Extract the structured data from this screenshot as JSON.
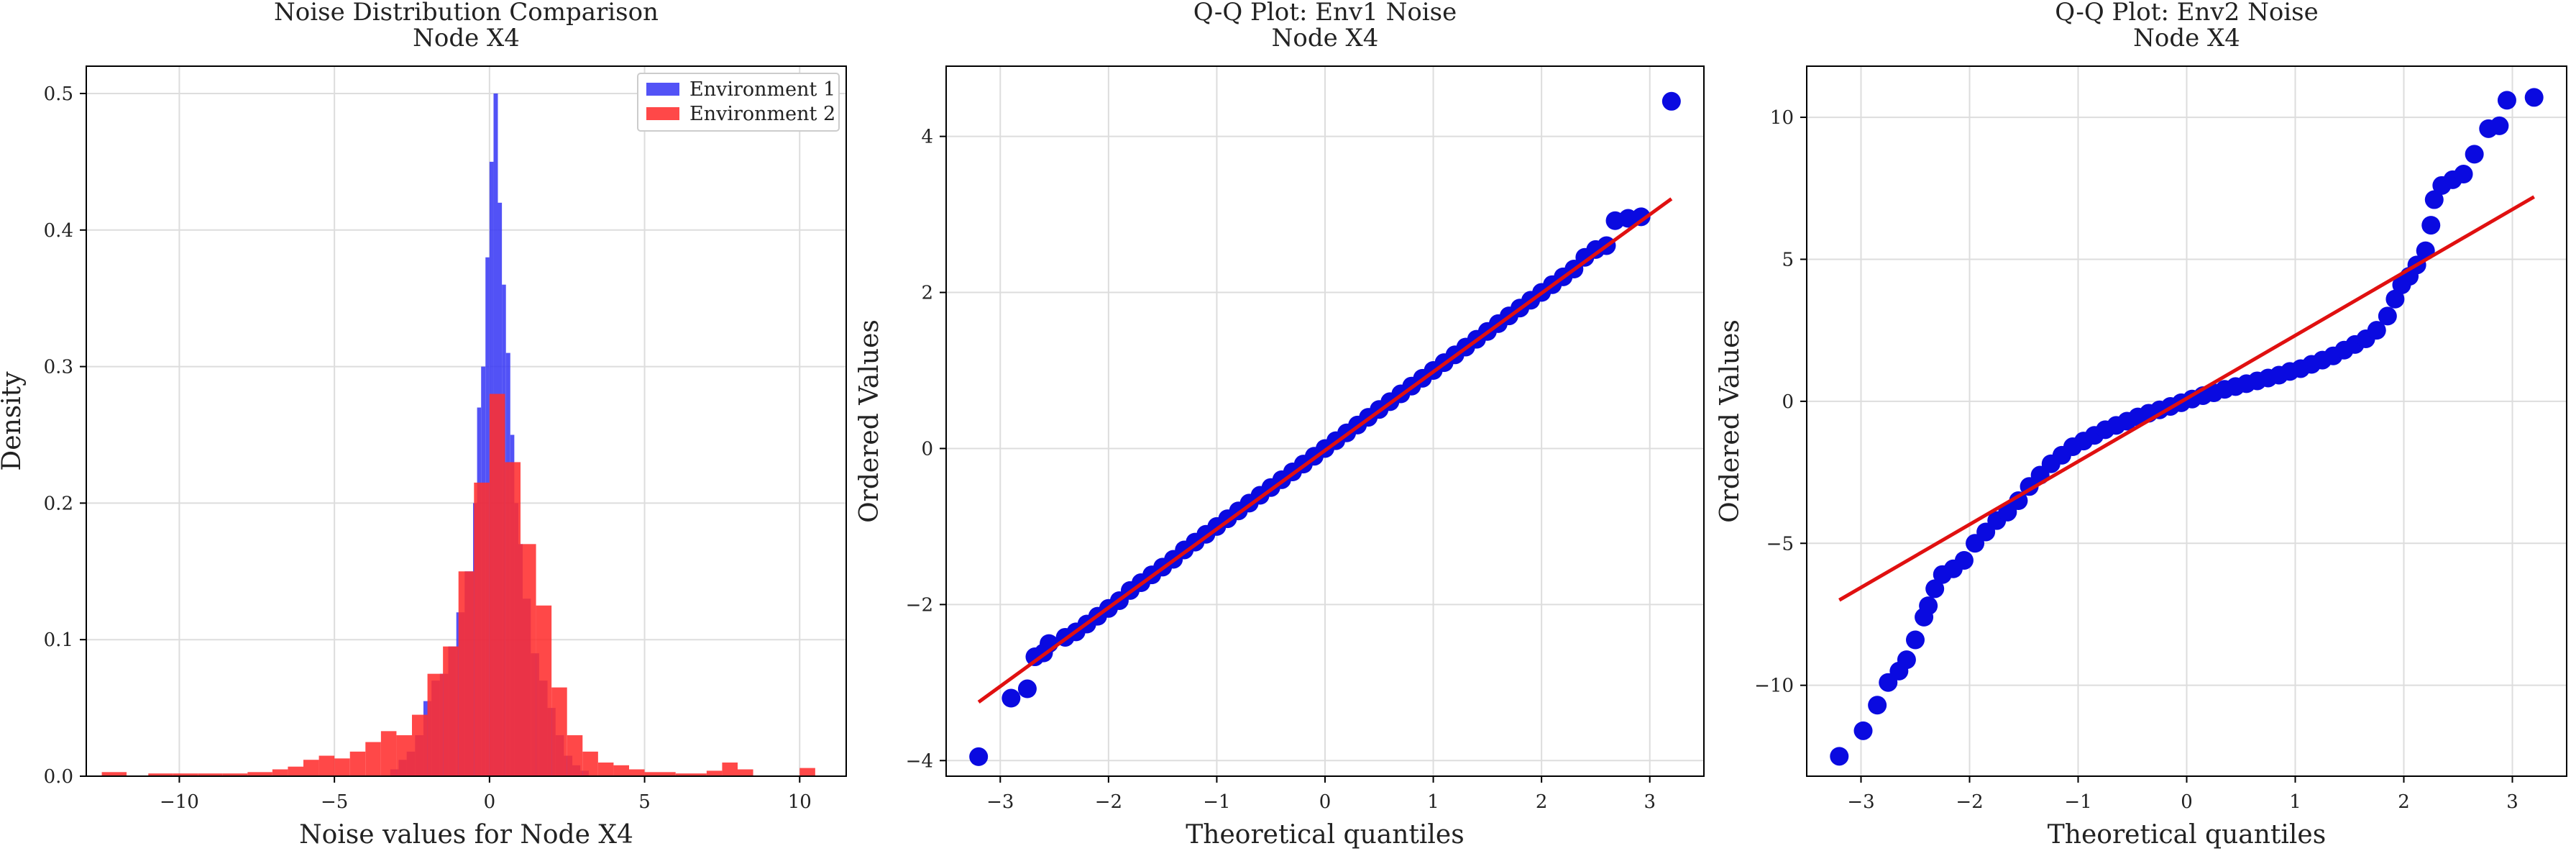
{
  "chart_data": [
    {
      "type": "histogram",
      "title": "Noise Distribution Comparison",
      "subtitle": "Node X4",
      "xlabel": "Noise values for Node X4",
      "ylabel": "Density",
      "xlim": [
        -13.0,
        11.5
      ],
      "ylim": [
        0,
        0.52
      ],
      "xticks": [
        -10,
        -5,
        0,
        5,
        10
      ],
      "yticks": [
        0.0,
        0.1,
        0.2,
        0.3,
        0.4,
        0.5
      ],
      "grid": true,
      "legend_position": "top-right",
      "series": [
        {
          "name": "Environment 1",
          "color": "#3b3bf5",
          "bins": [
            [
              -3.2,
              -2.93,
              0.005
            ],
            [
              -2.93,
              -2.67,
              0.012
            ],
            [
              -2.67,
              -2.4,
              0.018
            ],
            [
              -2.4,
              -2.13,
              0.03
            ],
            [
              -2.13,
              -1.87,
              0.055
            ],
            [
              -1.87,
              -1.6,
              0.07
            ],
            [
              -1.6,
              -1.33,
              0.075
            ],
            [
              -1.33,
              -1.07,
              0.095
            ],
            [
              -1.07,
              -0.8,
              0.12
            ],
            [
              -0.8,
              -0.53,
              0.15
            ],
            [
              -0.53,
              -0.4,
              0.2
            ],
            [
              -0.4,
              -0.27,
              0.27
            ],
            [
              -0.27,
              -0.13,
              0.3
            ],
            [
              -0.13,
              0.0,
              0.38
            ],
            [
              0.0,
              0.13,
              0.45
            ],
            [
              0.13,
              0.27,
              0.5
            ],
            [
              0.27,
              0.4,
              0.42
            ],
            [
              0.4,
              0.53,
              0.36
            ],
            [
              0.53,
              0.67,
              0.31
            ],
            [
              0.67,
              0.8,
              0.25
            ],
            [
              0.8,
              0.93,
              0.2
            ],
            [
              0.93,
              1.07,
              0.17
            ],
            [
              1.07,
              1.33,
              0.13
            ],
            [
              1.33,
              1.6,
              0.09
            ],
            [
              1.6,
              1.87,
              0.07
            ],
            [
              1.87,
              2.13,
              0.05
            ],
            [
              2.13,
              2.4,
              0.03
            ],
            [
              2.4,
              2.67,
              0.015
            ],
            [
              2.67,
              2.93,
              0.008
            ],
            [
              2.93,
              3.2,
              0.004
            ]
          ]
        },
        {
          "name": "Environment 2",
          "color": "#ff2f2f",
          "bins": [
            [
              -12.5,
              -11.7,
              0.003
            ],
            [
              -11.0,
              -10.2,
              0.002
            ],
            [
              -10.2,
              -9.4,
              0.002
            ],
            [
              -9.4,
              -8.6,
              0.002
            ],
            [
              -8.6,
              -7.8,
              0.002
            ],
            [
              -7.8,
              -7.0,
              0.003
            ],
            [
              -7.0,
              -6.5,
              0.005
            ],
            [
              -6.5,
              -6.0,
              0.007
            ],
            [
              -6.0,
              -5.5,
              0.012
            ],
            [
              -5.5,
              -5.0,
              0.015
            ],
            [
              -5.0,
              -4.5,
              0.013
            ],
            [
              -4.5,
              -4.0,
              0.018
            ],
            [
              -4.0,
              -3.5,
              0.025
            ],
            [
              -3.5,
              -3.0,
              0.033
            ],
            [
              -3.0,
              -2.5,
              0.03
            ],
            [
              -2.5,
              -2.0,
              0.045
            ],
            [
              -2.0,
              -1.5,
              0.075
            ],
            [
              -1.5,
              -1.0,
              0.095
            ],
            [
              -1.0,
              -0.5,
              0.15
            ],
            [
              -0.5,
              0.0,
              0.215
            ],
            [
              0.0,
              0.5,
              0.28
            ],
            [
              0.5,
              1.0,
              0.23
            ],
            [
              1.0,
              1.5,
              0.17
            ],
            [
              1.5,
              2.0,
              0.125
            ],
            [
              2.0,
              2.5,
              0.065
            ],
            [
              2.5,
              3.0,
              0.03
            ],
            [
              3.0,
              3.5,
              0.018
            ],
            [
              3.5,
              4.0,
              0.01
            ],
            [
              4.0,
              4.5,
              0.008
            ],
            [
              4.5,
              5.0,
              0.005
            ],
            [
              5.0,
              6.0,
              0.003
            ],
            [
              6.0,
              7.0,
              0.002
            ],
            [
              7.0,
              7.5,
              0.004
            ],
            [
              7.5,
              8.0,
              0.01
            ],
            [
              8.0,
              8.5,
              0.005
            ],
            [
              10.0,
              10.5,
              0.006
            ]
          ]
        }
      ]
    },
    {
      "type": "scatter",
      "title": "Q-Q Plot: Env1 Noise",
      "subtitle": "Node X4",
      "xlabel": "Theoretical quantiles",
      "ylabel": "Ordered Values",
      "xlim": [
        -3.5,
        3.5
      ],
      "ylim": [
        -4.2,
        4.9
      ],
      "xticks": [
        -3,
        -2,
        -1,
        0,
        1,
        2,
        3
      ],
      "yticks": [
        -4,
        -2,
        0,
        2,
        4
      ],
      "grid": true,
      "points_color": "#0a0ae0",
      "fit_line": {
        "color": "#e01010",
        "x": [
          -3.2,
          3.2
        ],
        "y": [
          -3.25,
          3.2
        ]
      },
      "points": [
        [
          -3.2,
          -3.95
        ],
        [
          -2.9,
          -3.2
        ],
        [
          -2.75,
          -3.08
        ],
        [
          -2.68,
          -2.67
        ],
        [
          -2.6,
          -2.62
        ],
        [
          -2.55,
          -2.5
        ],
        [
          -2.4,
          -2.42
        ],
        [
          -2.3,
          -2.35
        ],
        [
          -2.2,
          -2.25
        ],
        [
          -2.1,
          -2.15
        ],
        [
          -2.0,
          -2.05
        ],
        [
          -1.9,
          -1.95
        ],
        [
          -1.8,
          -1.82
        ],
        [
          -1.7,
          -1.72
        ],
        [
          -1.6,
          -1.62
        ],
        [
          -1.5,
          -1.52
        ],
        [
          -1.4,
          -1.42
        ],
        [
          -1.3,
          -1.3
        ],
        [
          -1.2,
          -1.2
        ],
        [
          -1.1,
          -1.1
        ],
        [
          -1.0,
          -1.0
        ],
        [
          -0.9,
          -0.9
        ],
        [
          -0.8,
          -0.8
        ],
        [
          -0.7,
          -0.7
        ],
        [
          -0.6,
          -0.6
        ],
        [
          -0.5,
          -0.5
        ],
        [
          -0.4,
          -0.4
        ],
        [
          -0.3,
          -0.3
        ],
        [
          -0.2,
          -0.2
        ],
        [
          -0.1,
          -0.1
        ],
        [
          0.0,
          0.0
        ],
        [
          0.1,
          0.1
        ],
        [
          0.2,
          0.2
        ],
        [
          0.3,
          0.3
        ],
        [
          0.4,
          0.4
        ],
        [
          0.5,
          0.5
        ],
        [
          0.6,
          0.6
        ],
        [
          0.7,
          0.7
        ],
        [
          0.8,
          0.8
        ],
        [
          0.9,
          0.9
        ],
        [
          1.0,
          1.0
        ],
        [
          1.1,
          1.1
        ],
        [
          1.2,
          1.2
        ],
        [
          1.3,
          1.3
        ],
        [
          1.4,
          1.4
        ],
        [
          1.5,
          1.5
        ],
        [
          1.6,
          1.6
        ],
        [
          1.7,
          1.7
        ],
        [
          1.8,
          1.8
        ],
        [
          1.9,
          1.9
        ],
        [
          2.0,
          2.0
        ],
        [
          2.1,
          2.1
        ],
        [
          2.2,
          2.2
        ],
        [
          2.3,
          2.3
        ],
        [
          2.4,
          2.45
        ],
        [
          2.5,
          2.55
        ],
        [
          2.6,
          2.6
        ],
        [
          2.68,
          2.92
        ],
        [
          2.8,
          2.95
        ],
        [
          2.92,
          2.97
        ],
        [
          3.2,
          4.45
        ]
      ]
    },
    {
      "type": "scatter",
      "title": "Q-Q Plot: Env2 Noise",
      "subtitle": "Node X4",
      "xlabel": "Theoretical quantiles",
      "ylabel": "Ordered Values",
      "xlim": [
        -3.5,
        3.5
      ],
      "ylim": [
        -13.2,
        11.8
      ],
      "xticks": [
        -3,
        -2,
        -1,
        0,
        1,
        2,
        3
      ],
      "yticks": [
        -10,
        -5,
        0,
        5,
        10
      ],
      "grid": true,
      "points_color": "#0a0ae0",
      "fit_line": {
        "color": "#e01010",
        "x": [
          -3.2,
          3.2
        ],
        "y": [
          -7.0,
          7.2
        ]
      },
      "points": [
        [
          -3.2,
          -12.5
        ],
        [
          -2.98,
          -11.6
        ],
        [
          -2.85,
          -10.7
        ],
        [
          -2.75,
          -9.9
        ],
        [
          -2.65,
          -9.5
        ],
        [
          -2.58,
          -9.1
        ],
        [
          -2.5,
          -8.4
        ],
        [
          -2.42,
          -7.6
        ],
        [
          -2.38,
          -7.2
        ],
        [
          -2.32,
          -6.6
        ],
        [
          -2.25,
          -6.1
        ],
        [
          -2.15,
          -5.9
        ],
        [
          -2.05,
          -5.6
        ],
        [
          -1.95,
          -5.0
        ],
        [
          -1.85,
          -4.6
        ],
        [
          -1.75,
          -4.2
        ],
        [
          -1.65,
          -3.9
        ],
        [
          -1.55,
          -3.5
        ],
        [
          -1.45,
          -3.0
        ],
        [
          -1.35,
          -2.6
        ],
        [
          -1.25,
          -2.2
        ],
        [
          -1.15,
          -1.9
        ],
        [
          -1.05,
          -1.6
        ],
        [
          -0.95,
          -1.4
        ],
        [
          -0.85,
          -1.2
        ],
        [
          -0.75,
          -1.0
        ],
        [
          -0.65,
          -0.85
        ],
        [
          -0.55,
          -0.7
        ],
        [
          -0.45,
          -0.55
        ],
        [
          -0.35,
          -0.42
        ],
        [
          -0.25,
          -0.3
        ],
        [
          -0.15,
          -0.18
        ],
        [
          -0.05,
          -0.05
        ],
        [
          0.05,
          0.08
        ],
        [
          0.15,
          0.2
        ],
        [
          0.25,
          0.3
        ],
        [
          0.35,
          0.42
        ],
        [
          0.45,
          0.52
        ],
        [
          0.55,
          0.62
        ],
        [
          0.65,
          0.72
        ],
        [
          0.75,
          0.82
        ],
        [
          0.85,
          0.92
        ],
        [
          0.95,
          1.05
        ],
        [
          1.05,
          1.15
        ],
        [
          1.15,
          1.3
        ],
        [
          1.25,
          1.45
        ],
        [
          1.35,
          1.6
        ],
        [
          1.45,
          1.8
        ],
        [
          1.55,
          2.0
        ],
        [
          1.65,
          2.2
        ],
        [
          1.75,
          2.5
        ],
        [
          1.85,
          3.0
        ],
        [
          1.92,
          3.6
        ],
        [
          1.98,
          4.1
        ],
        [
          2.05,
          4.4
        ],
        [
          2.12,
          4.8
        ],
        [
          2.2,
          5.3
        ],
        [
          2.25,
          6.2
        ],
        [
          2.28,
          7.1
        ],
        [
          2.35,
          7.6
        ],
        [
          2.45,
          7.8
        ],
        [
          2.55,
          8.0
        ],
        [
          2.65,
          8.7
        ],
        [
          2.78,
          9.6
        ],
        [
          2.88,
          9.7
        ],
        [
          2.95,
          10.6
        ],
        [
          3.2,
          10.7
        ]
      ]
    }
  ]
}
